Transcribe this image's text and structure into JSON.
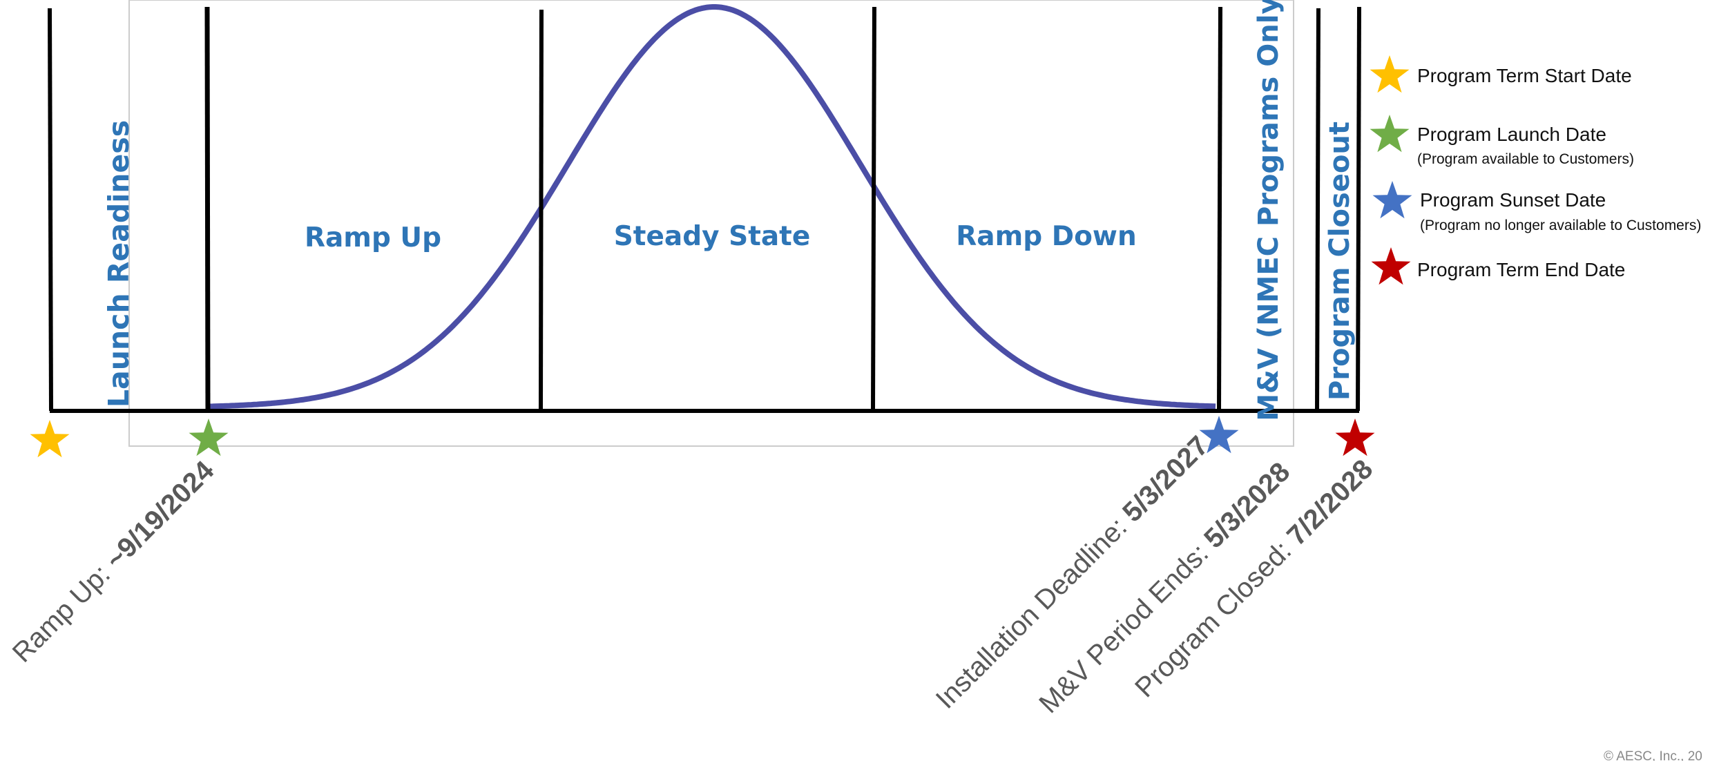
{
  "phases": {
    "launch_readiness": "Launch Readiness",
    "ramp_up": "Ramp Up",
    "steady_state": "Steady State",
    "ramp_down": "Ramp Down",
    "mv": "M&V (NMEC Programs Only)",
    "closeout": "Program Closeout"
  },
  "milestones": {
    "ramp_up": {
      "label": "Ramp Up: ",
      "date": "~9/19/2024"
    },
    "installation": {
      "label": "Installation Deadline: ",
      "date": "5/3/2027"
    },
    "mv_end": {
      "label": "M&V Period Ends: ",
      "date": "5/3/2028"
    },
    "closed": {
      "label": "Program Closed: ",
      "date": "7/2/2028"
    }
  },
  "legend": {
    "term_start": {
      "label": "Program Term Start Date",
      "color": "#ffc000",
      "icon": "star-icon"
    },
    "launch": {
      "label": "Program Launch Date",
      "sub": "(Program available to Customers)",
      "color": "#70ad47",
      "icon": "star-icon"
    },
    "sunset": {
      "label": "Program Sunset Date",
      "sub": "(Program no longer available to Customers)",
      "color": "#4472c4",
      "icon": "star-icon"
    },
    "term_end": {
      "label": "Program Term End Date",
      "color": "#c00000",
      "icon": "star-icon"
    }
  },
  "copyright": "© AESC, Inc., 20",
  "colors": {
    "heading": "#2e75b6",
    "curve": "#4b4ea6",
    "axis": "#000000",
    "label": "#595959"
  }
}
